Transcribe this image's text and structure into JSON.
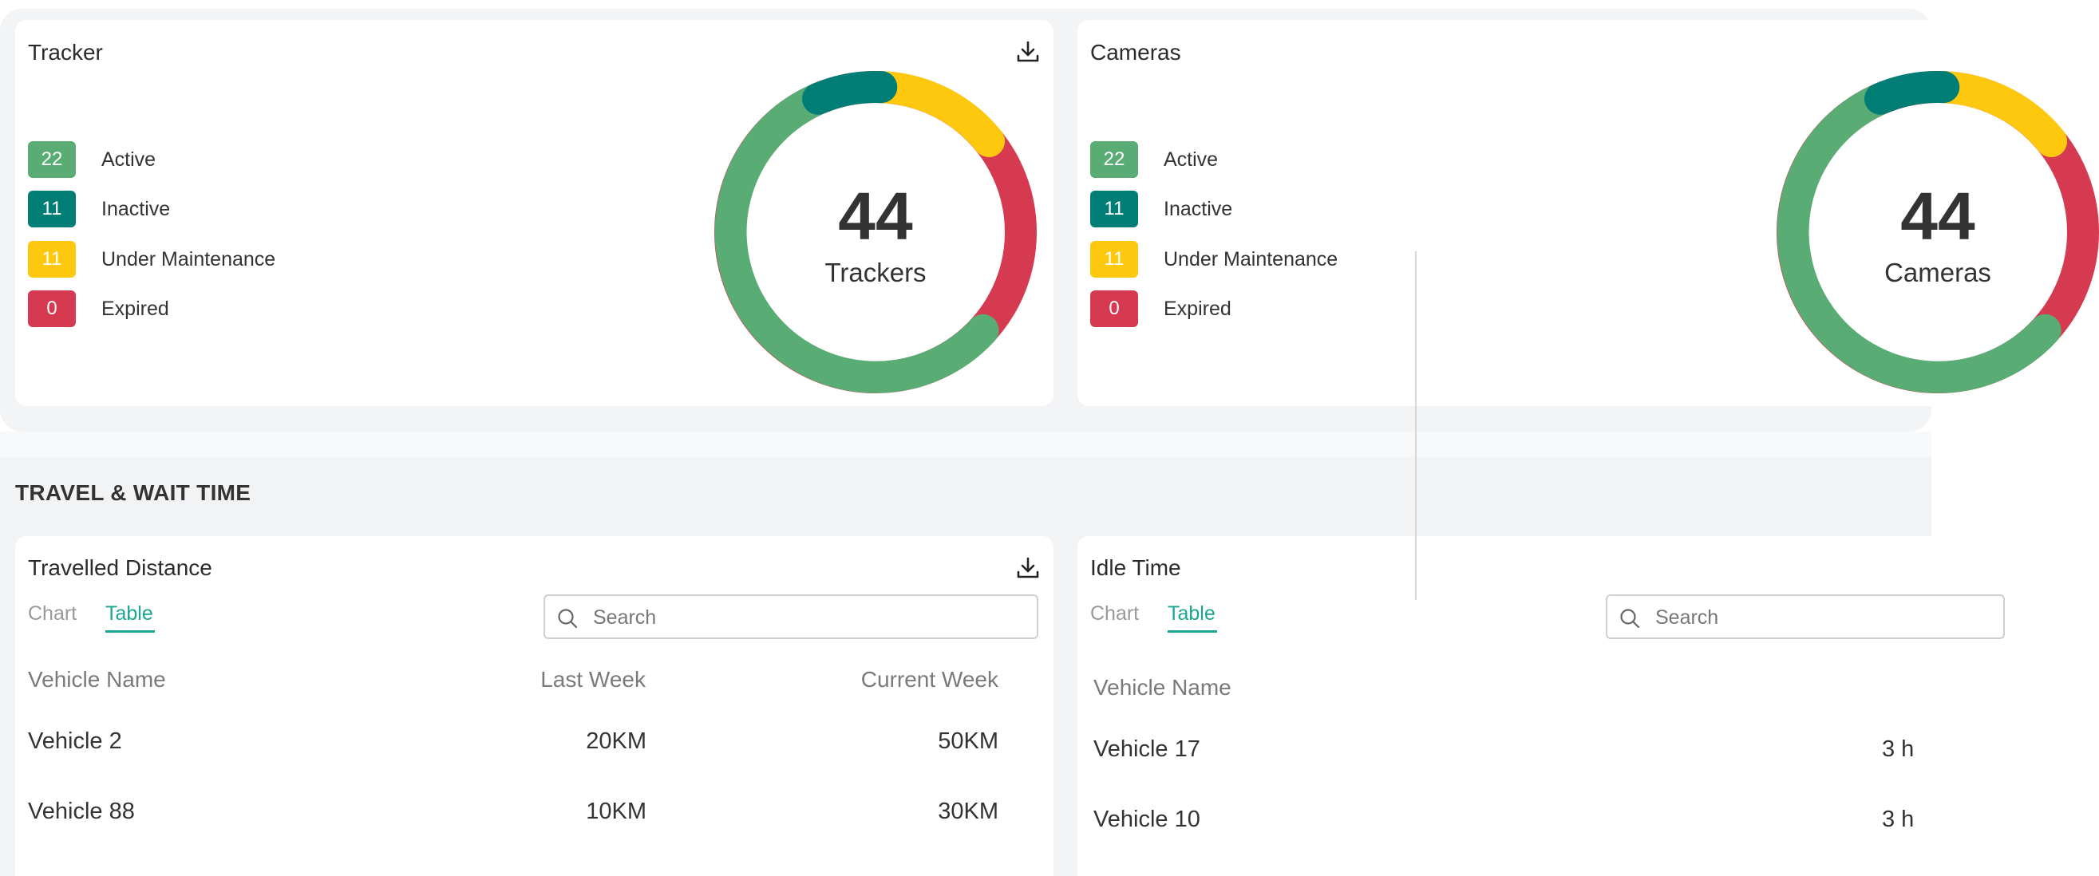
{
  "colors": {
    "active": "#5aac75",
    "inactive": "#007d75",
    "maintenance": "#fec80e",
    "expired": "#d63a51",
    "accent": "#1aa693"
  },
  "tracker": {
    "title": "Tracker",
    "download_icon": "download-icon",
    "legend": [
      {
        "count": "22",
        "label": "Active"
      },
      {
        "count": "11",
        "label": "Inactive"
      },
      {
        "count": "11",
        "label": "Under Maintenance"
      },
      {
        "count": "0",
        "label": "Expired"
      }
    ],
    "total": "44",
    "total_label": "Trackers"
  },
  "cameras": {
    "title": "Cameras",
    "legend": [
      {
        "count": "22",
        "label": "Active"
      },
      {
        "count": "11",
        "label": "Inactive"
      },
      {
        "count": "11",
        "label": "Under Maintenance"
      },
      {
        "count": "0",
        "label": "Expired"
      }
    ],
    "total": "44",
    "total_label": "Cameras"
  },
  "section": {
    "title": "TRAVEL & WAIT TIME"
  },
  "travelled": {
    "title": "Travelled Distance",
    "download_icon": "download-icon",
    "tabs": [
      {
        "label": "Chart",
        "active": false
      },
      {
        "label": "Table",
        "active": true
      }
    ],
    "search_placeholder": "Search",
    "columns": [
      "Vehicle Name",
      "Last Week",
      "Current Week"
    ],
    "rows": [
      {
        "name": "Vehicle 2",
        "last_week": "20KM",
        "current_week": "50KM"
      },
      {
        "name": "Vehicle 88",
        "last_week": "10KM",
        "current_week": "30KM"
      }
    ]
  },
  "idle": {
    "title": "Idle Time",
    "tabs": [
      {
        "label": "Chart",
        "active": false
      },
      {
        "label": "Table",
        "active": true
      }
    ],
    "search_placeholder": "Search",
    "columns": [
      "Vehicle Name"
    ],
    "rows": [
      {
        "name": "Vehicle 17",
        "value": "3 h"
      },
      {
        "name": "Vehicle 10",
        "value": "3 h"
      }
    ]
  }
}
